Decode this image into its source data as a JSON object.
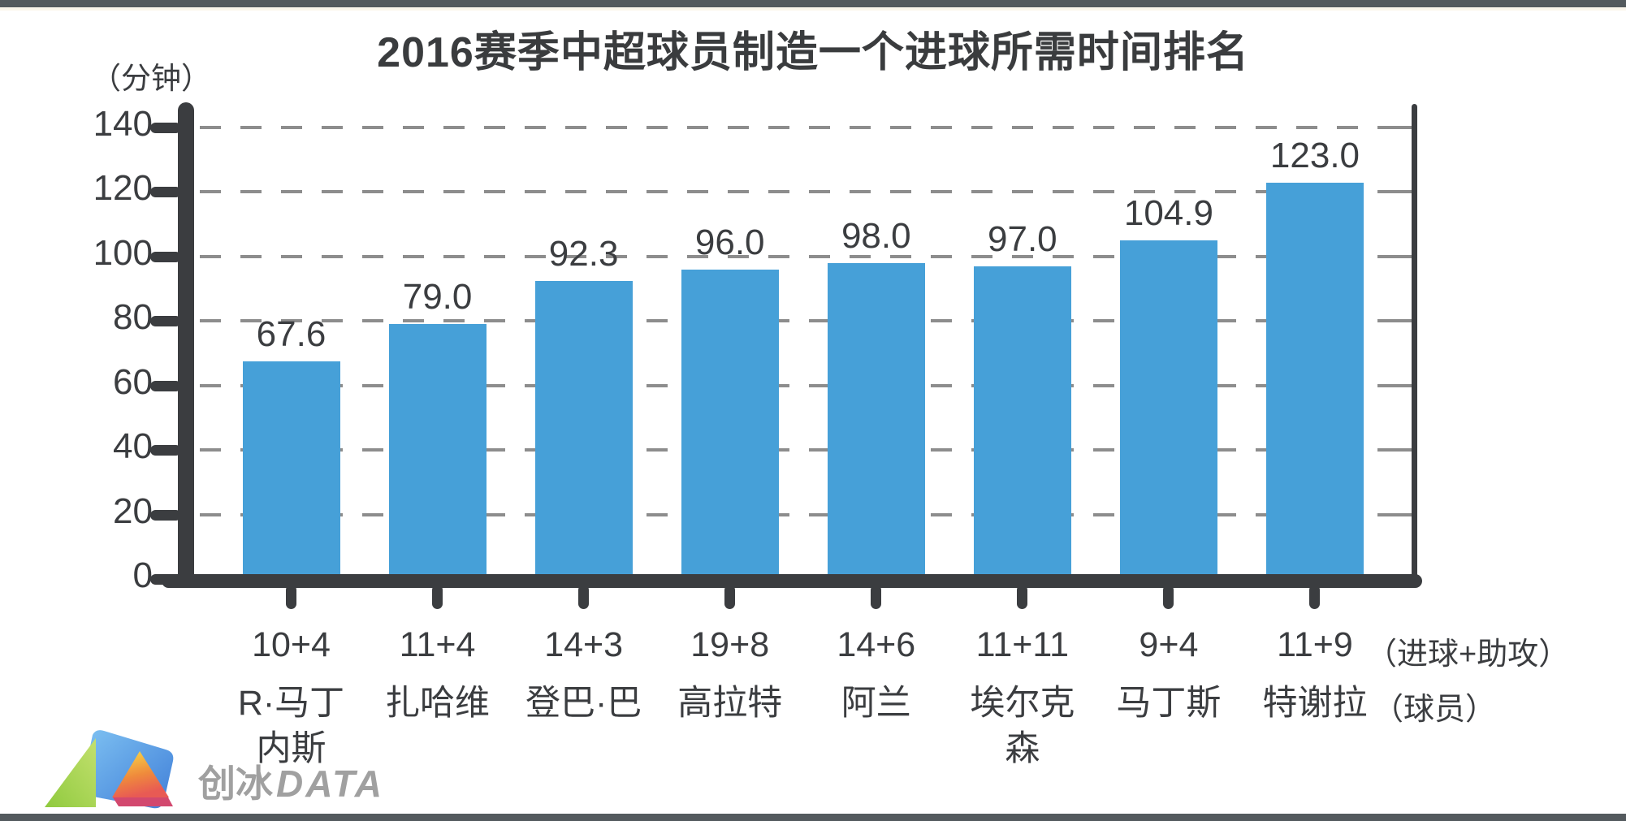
{
  "page": {
    "top_title": "2016赛季中超球员制造一个进球所需时间排名",
    "y_axis_unit": "（分钟）",
    "x_annotation_stats": "（进球+助攻）",
    "x_annotation_player": "（球员）",
    "logo": {
      "cn": "创冰",
      "en": "DATA"
    }
  },
  "chart_data": {
    "type": "bar",
    "title": "2016赛季中超球员制造一个进球所需时间排名",
    "xlabel": "球员（进球+助攻）",
    "ylabel": "分钟",
    "ylim": [
      0,
      150
    ],
    "yticks": [
      0,
      20,
      40,
      60,
      80,
      100,
      120,
      140
    ],
    "grid": "horizontal-dashed",
    "legend_position": "none",
    "categories": [
      "R·马丁内斯",
      "扎哈维",
      "登巴·巴",
      "高拉特",
      "阿兰",
      "埃尔克森",
      "马丁斯",
      "特谢拉"
    ],
    "goals_plus_assists": [
      "10+4",
      "11+4",
      "14+3",
      "19+8",
      "14+6",
      "11+11",
      "9+4",
      "11+9"
    ],
    "values": [
      67.6,
      79.0,
      92.3,
      96.0,
      98.0,
      97.0,
      104.9,
      123.0
    ],
    "bar_color": "#46A0D8",
    "axis_color": "#3b3d40",
    "grid_color": "#8d8d8d"
  }
}
